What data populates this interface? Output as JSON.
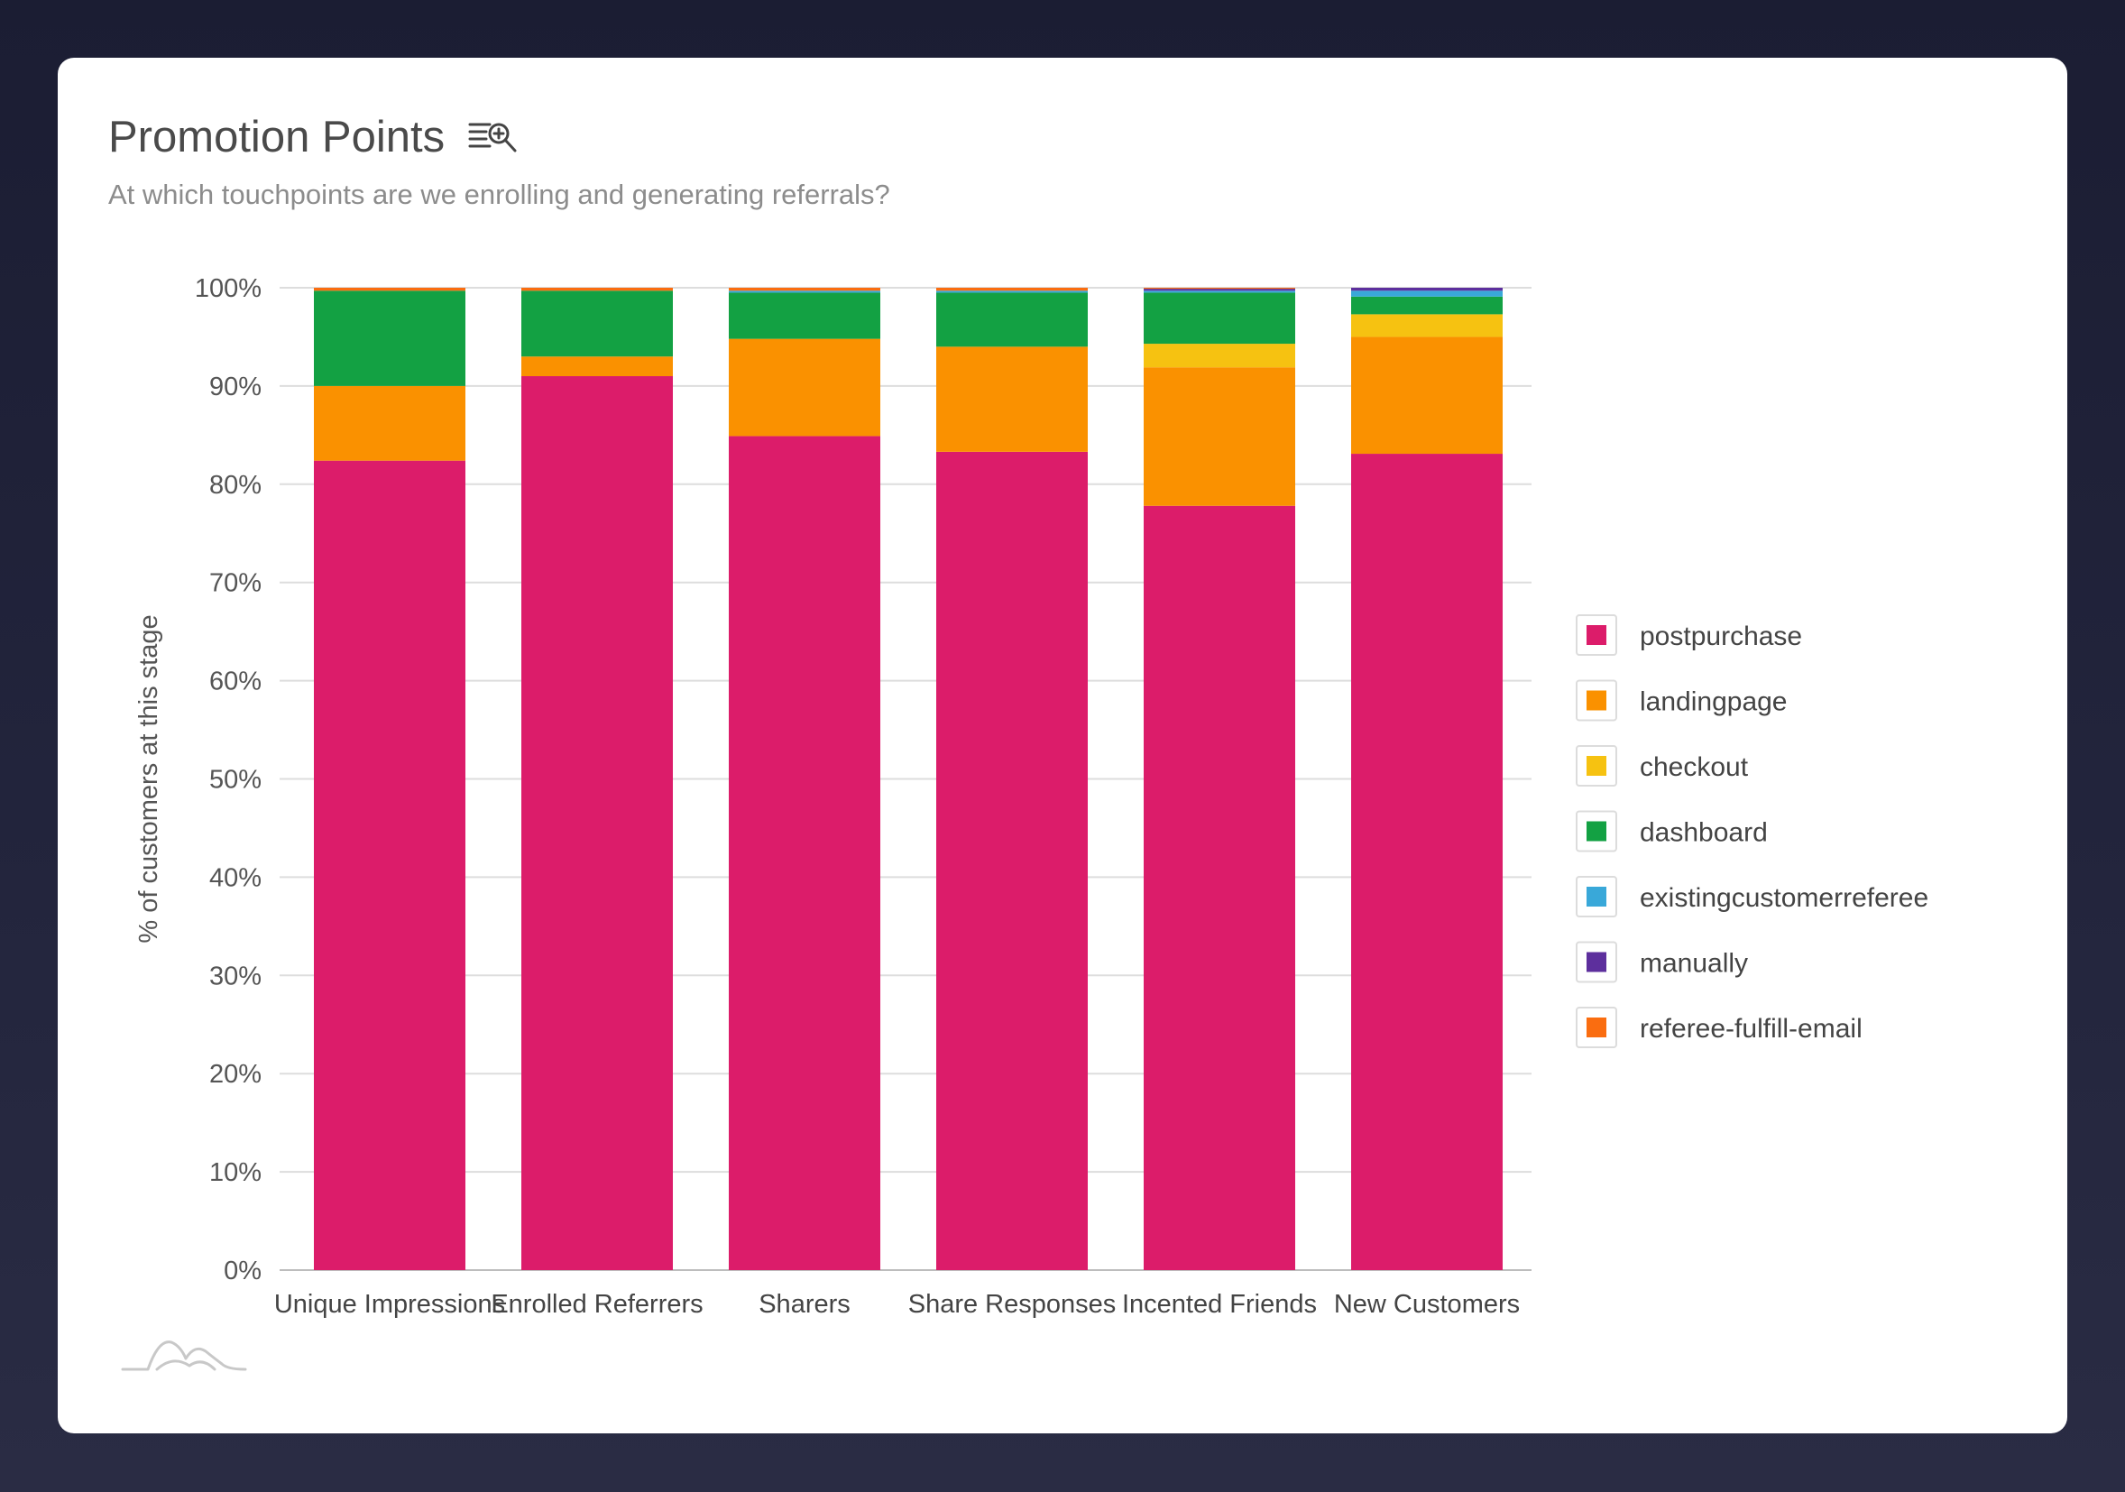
{
  "header": {
    "title": "Promotion Points",
    "subtitle": "At which touchpoints are we enrolling and generating referrals?",
    "title_icon": "list-search-icon"
  },
  "footer": {
    "logo_icon": "mountain-logo-icon"
  },
  "chart_data": {
    "type": "bar",
    "stacked": true,
    "categories": [
      "Unique Impressions",
      "Enrolled Referrers",
      "Sharers",
      "Share Responses",
      "Incented Friends",
      "New Customers"
    ],
    "ylabel": "% of customers at this stage",
    "xlabel": "",
    "ylim": [
      0,
      100
    ],
    "yticks": [
      "0%",
      "10%",
      "20%",
      "30%",
      "40%",
      "50%",
      "60%",
      "70%",
      "80%",
      "90%",
      "100%"
    ],
    "grid": true,
    "legend_position": "right",
    "series": [
      {
        "name": "postpurchase",
        "color": "#dc1c6a",
        "values": [
          82.4,
          91.0,
          84.9,
          83.3,
          77.8,
          83.1
        ]
      },
      {
        "name": "landingpage",
        "color": "#fa9100",
        "values": [
          7.6,
          2.0,
          9.9,
          10.7,
          14.1,
          11.9
        ]
      },
      {
        "name": "checkout",
        "color": "#f6c211",
        "values": [
          0.0,
          0.0,
          0.0,
          0.0,
          2.4,
          2.3
        ]
      },
      {
        "name": "dashboard",
        "color": "#13a143",
        "values": [
          9.7,
          6.7,
          4.7,
          5.5,
          5.2,
          1.8
        ]
      },
      {
        "name": "existingcustomerreferee",
        "color": "#39a8d9",
        "values": [
          0.0,
          0.0,
          0.2,
          0.2,
          0.2,
          0.6
        ]
      },
      {
        "name": "manually",
        "color": "#5d2f9d",
        "values": [
          0.0,
          0.0,
          0.0,
          0.0,
          0.2,
          0.3
        ]
      },
      {
        "name": "referee-fulfill-email",
        "color": "#fa6d10",
        "values": [
          0.3,
          0.3,
          0.3,
          0.3,
          0.1,
          0.0
        ]
      }
    ]
  }
}
